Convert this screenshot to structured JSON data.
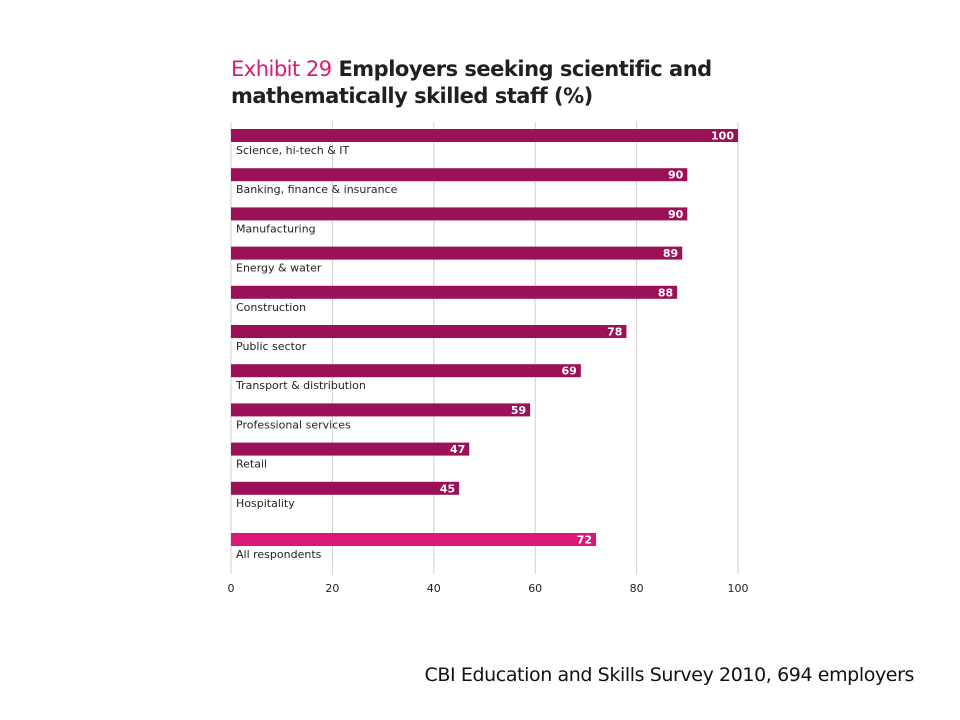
{
  "title": {
    "prefix": "Exhibit 29",
    "text": "Employers seeking scientific and mathematically skilled staff (%)"
  },
  "source": "CBI Education and Skills Survey 2010, 694 employers",
  "colors": {
    "bar": "#9b1157",
    "highlight_bar": "#dd1778",
    "grid": "#cfcfcf",
    "title_prefix": "#d81b78"
  },
  "chart_data": {
    "type": "bar",
    "orientation": "horizontal",
    "title": "Exhibit 29 Employers seeking scientific and mathematically skilled staff (%)",
    "categories": [
      "Science, hi-tech & IT",
      "Banking, finance & insurance",
      "Manufacturing",
      "Energy & water",
      "Construction",
      "Public sector",
      "Transport & distribution",
      "Professional services",
      "Retail",
      "Hospitality",
      "All respondents"
    ],
    "values": [
      100,
      90,
      90,
      89,
      88,
      78,
      69,
      59,
      47,
      45,
      72
    ],
    "highlight": [
      "All respondents"
    ],
    "xlim": [
      0,
      100
    ],
    "xticks": [
      0,
      20,
      40,
      60,
      80,
      100
    ],
    "grid": "vertical",
    "data_labels": true
  }
}
